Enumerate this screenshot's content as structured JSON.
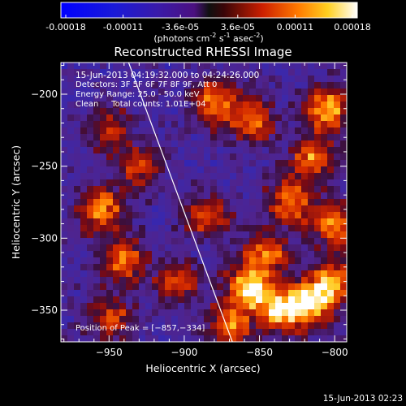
{
  "colorbar": {
    "tick_labels": [
      "-0.00018",
      "-0.00011",
      "-3.6e-05",
      "3.6e-05",
      "0.00011",
      "0.00018"
    ],
    "range": [
      -0.00018,
      0.00018
    ],
    "units_label": "(photons cm",
    "units_sup1": "-2",
    "units_mid": " s",
    "units_sup2": "-1",
    "units_end": " asec",
    "units_sup3": "-2",
    "units_close": ")"
  },
  "chart_data": {
    "type": "heatmap",
    "title": "Reconstructed RHESSI Image",
    "xlabel": "Heliocentric X (arcsec)",
    "ylabel": "Heliocentric Y (arcsec)",
    "xlim": [
      -982,
      -792
    ],
    "ylim": [
      -372,
      -178
    ],
    "x_ticks": [
      -950,
      -900,
      -850,
      -800
    ],
    "y_ticks": [
      -200,
      -250,
      -300,
      -350
    ],
    "x_tick_labels": [
      "−950",
      "−900",
      "−850",
      "−800"
    ],
    "y_tick_labels": [
      "−200",
      "−250",
      "−300",
      "−350"
    ],
    "limb": [
      [
        -937,
        -178
      ],
      [
        -868,
        -372
      ]
    ],
    "peak": [
      -857,
      -334
    ],
    "grid": false,
    "colormap": "blue-purple-red-yellow-white",
    "hotspots": [
      {
        "x": -880,
        "y": -205,
        "amp": 0.85
      },
      {
        "x": -855,
        "y": -218,
        "amp": 0.7
      },
      {
        "x": -805,
        "y": -210,
        "amp": 0.9
      },
      {
        "x": -815,
        "y": -245,
        "amp": 0.75
      },
      {
        "x": -830,
        "y": -275,
        "amp": 0.8
      },
      {
        "x": -800,
        "y": -290,
        "amp": 0.8
      },
      {
        "x": -955,
        "y": -280,
        "amp": 0.85
      },
      {
        "x": -930,
        "y": -250,
        "amp": 0.6
      },
      {
        "x": -950,
        "y": -225,
        "amp": 0.55
      },
      {
        "x": -885,
        "y": -285,
        "amp": 0.7
      },
      {
        "x": -940,
        "y": -315,
        "amp": 0.8
      },
      {
        "x": -905,
        "y": -330,
        "amp": 0.55
      },
      {
        "x": -950,
        "y": -355,
        "amp": 0.65
      },
      {
        "x": -857,
        "y": -334,
        "amp": 1.0
      },
      {
        "x": -835,
        "y": -350,
        "amp": 0.95
      },
      {
        "x": -815,
        "y": -345,
        "amp": 0.9
      },
      {
        "x": -800,
        "y": -330,
        "amp": 0.8
      },
      {
        "x": -870,
        "y": -360,
        "amp": 0.75
      },
      {
        "x": -845,
        "y": -310,
        "amp": 0.7
      }
    ]
  },
  "annotations": {
    "time_range": "15-Jun-2013 04:19:32.000 to 04:24:26.000",
    "detectors": "Detectors: 3F 5F 6F 7F 8F 9F, Att 0",
    "energy": "Energy Range: 25.0 - 50.0 keV",
    "clean": "Clean     Total counts: 1.01E+04",
    "peak_text": "Position of Peak = [−857,−334]"
  },
  "footer": {
    "timestamp": "15-Jun-2013 02:23"
  }
}
